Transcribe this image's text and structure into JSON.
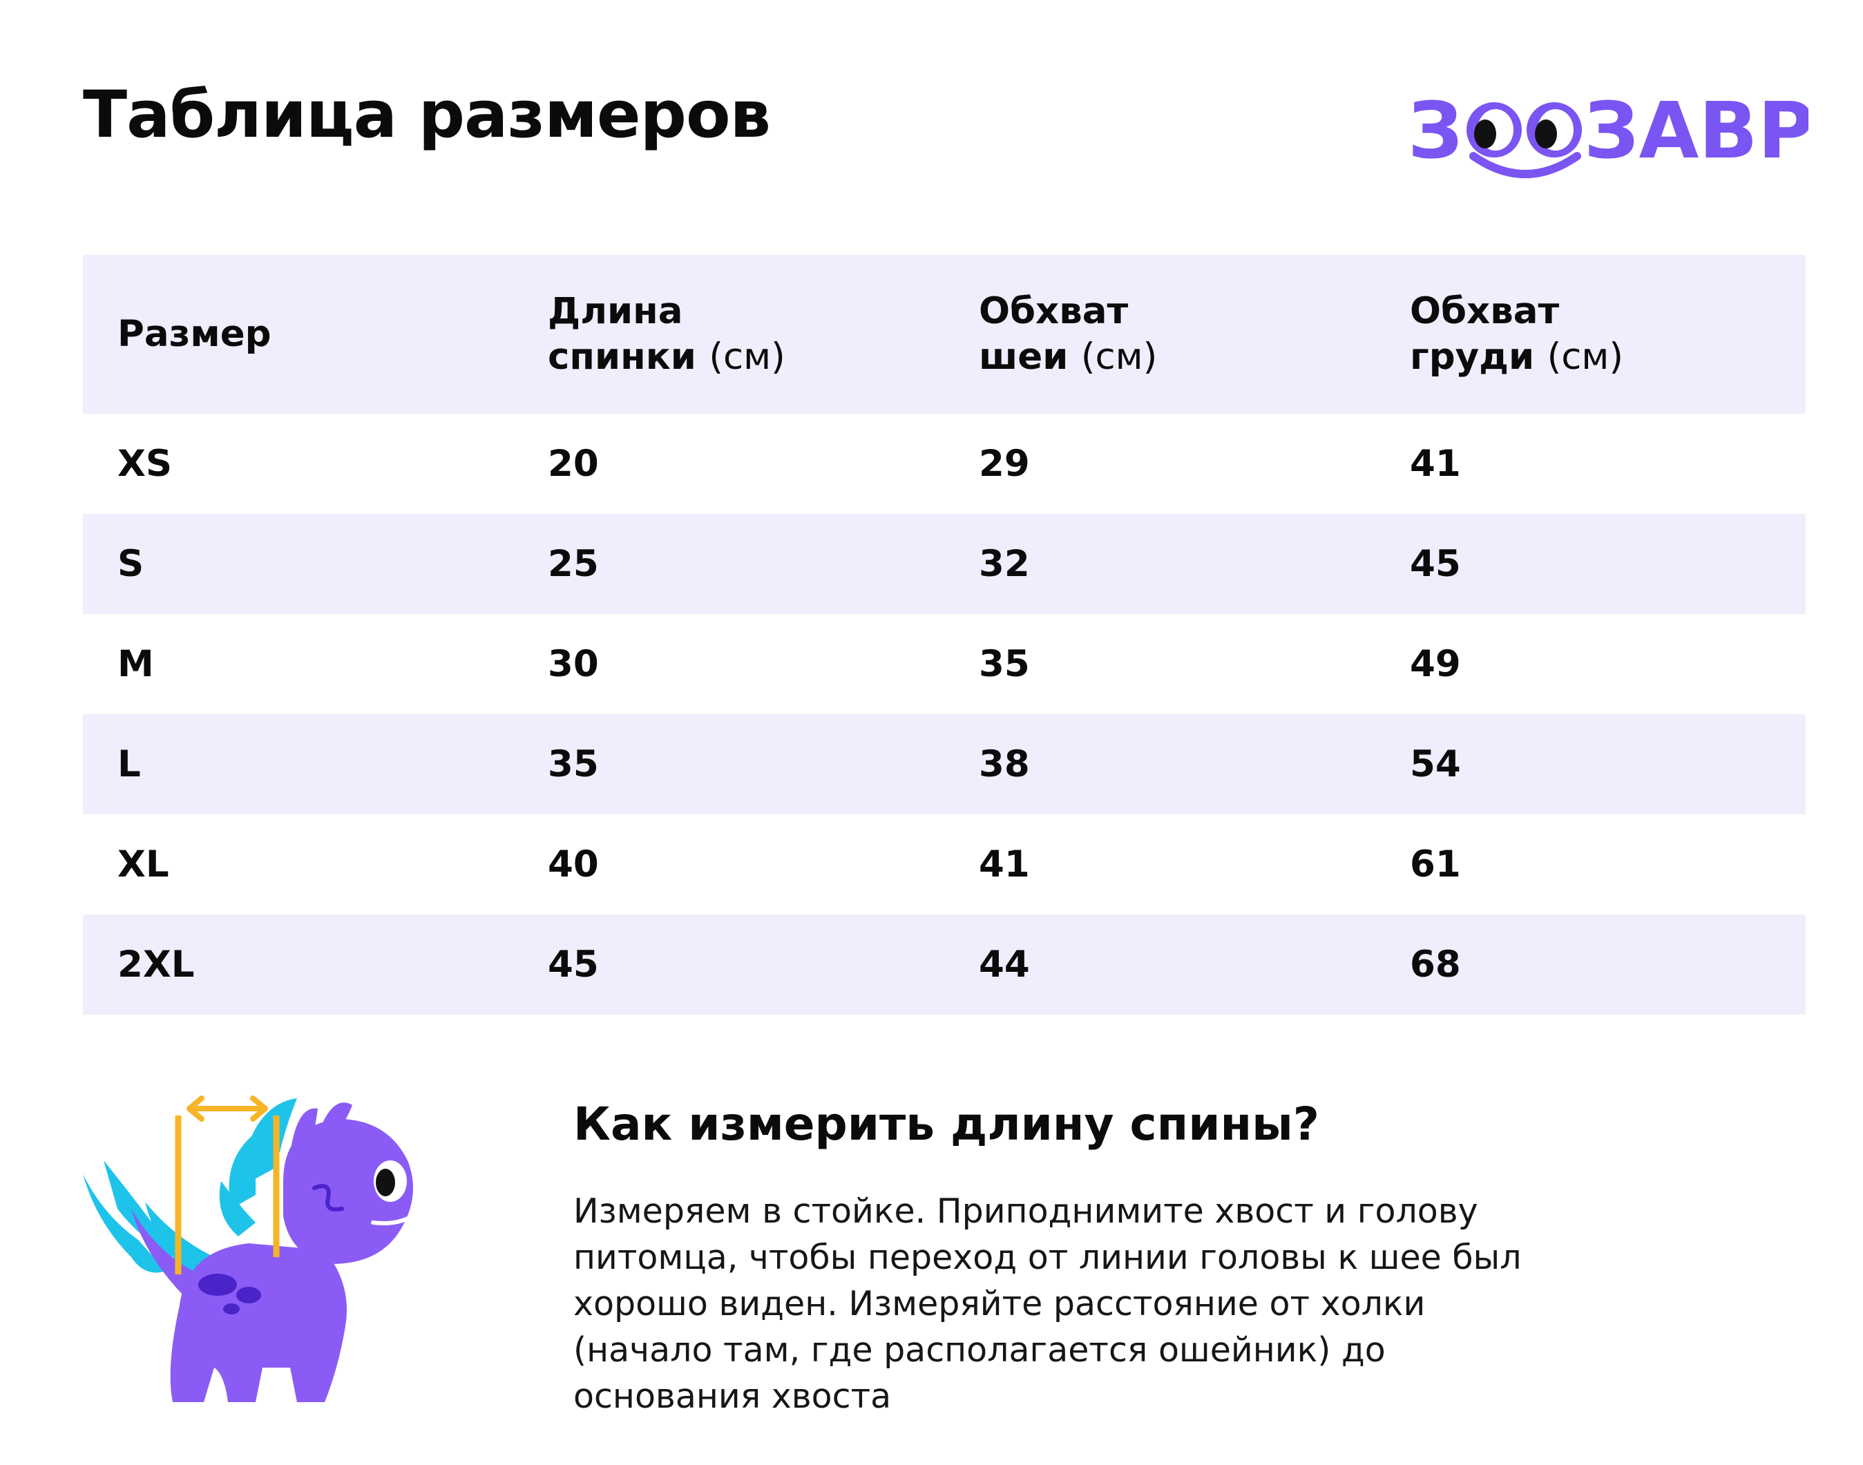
{
  "page": {
    "title": "Таблица размеров"
  },
  "logo": {
    "text": "ЗООЗАВР",
    "color": "#7a55f2"
  },
  "table": {
    "headers": [
      {
        "label": "Размер",
        "unit": ""
      },
      {
        "label": "Длина",
        "label2": "спинки",
        "unit": "(см)"
      },
      {
        "label": "Обхват",
        "label2": "шеи",
        "unit": "(см)"
      },
      {
        "label": "Обхват",
        "label2": "груди",
        "unit": "(см)"
      }
    ],
    "rows": [
      {
        "size": "XS",
        "back": "20",
        "neck": "29",
        "chest": "41"
      },
      {
        "size": "S",
        "back": "25",
        "neck": "32",
        "chest": "45"
      },
      {
        "size": "M",
        "back": "30",
        "neck": "35",
        "chest": "49"
      },
      {
        "size": "L",
        "back": "35",
        "neck": "38",
        "chest": "54"
      },
      {
        "size": "XL",
        "back": "40",
        "neck": "41",
        "chest": "61"
      },
      {
        "size": "2XL",
        "back": "45",
        "neck": "44",
        "chest": "68"
      }
    ],
    "stripe_color": "#efeefc"
  },
  "howto": {
    "title": "Как измерить длину спины?",
    "lines": [
      "Измеряем в стойке. Приподнимите хвост и голову",
      "питомца, чтобы переход от линии головы к шее был",
      "хорошо виден. Измеряйте расстояние от холки",
      "(начало там, где располагается ошейник) до",
      "основания хвоста"
    ]
  },
  "illustration": {
    "icon": "dino-measure-icon",
    "body_color": "#8a5cf5",
    "spike_color": "#1ec3ea",
    "measure_color": "#f6b526"
  }
}
